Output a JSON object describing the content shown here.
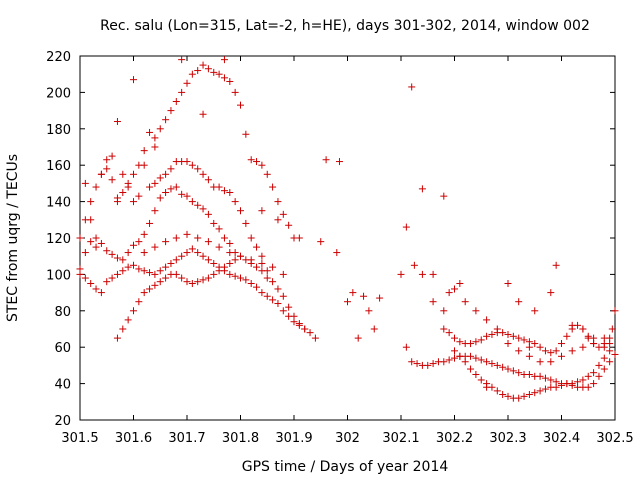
{
  "chart_data": {
    "type": "scatter",
    "title": "Rec. salu (Lon=315, Lat=-2, h=HE), days 301-302, 2014, window 002",
    "xlabel": "GPS time / Days of year 2014",
    "ylabel": "STEC from uqrg / TECUs",
    "xlim": [
      301.5,
      302.5
    ],
    "ylim": [
      20,
      220
    ],
    "grid": false,
    "legend": "none",
    "marker": "+",
    "marker_color": "#cc0000",
    "x_ticks": [
      "301.5",
      "301.6",
      "301.7",
      "301.8",
      "301.9",
      "302",
      "302.1",
      "302.2",
      "302.3",
      "302.4",
      "302.5"
    ],
    "x_tick_values": [
      301.5,
      301.6,
      301.7,
      301.8,
      301.9,
      302.0,
      302.1,
      302.2,
      302.3,
      302.4,
      302.5
    ],
    "y_ticks": [
      "20",
      "40",
      "60",
      "80",
      "100",
      "120",
      "140",
      "160",
      "180",
      "200",
      "220"
    ],
    "y_tick_values": [
      20,
      40,
      60,
      80,
      100,
      120,
      140,
      160,
      180,
      200,
      220
    ],
    "series": [
      {
        "name": "",
        "x": [
          301.5,
          301.51,
          301.52,
          301.53,
          301.54,
          301.55,
          301.56,
          301.57,
          301.58,
          301.59,
          301.6,
          301.61,
          301.62,
          301.63,
          301.64,
          301.65,
          301.66,
          301.67,
          301.68,
          301.69,
          301.7,
          301.71,
          301.72,
          301.73,
          301.74,
          301.75,
          301.76,
          301.77,
          301.78,
          301.79,
          301.8,
          301.81,
          301.82,
          301.83,
          301.84,
          301.85,
          301.51,
          301.52,
          301.53,
          301.54,
          301.55,
          301.56,
          301.57,
          301.58,
          301.59,
          301.6,
          301.61,
          301.62,
          301.63,
          301.64,
          301.65,
          301.66,
          301.67,
          301.68,
          301.69,
          301.7,
          301.71,
          301.72,
          301.73,
          301.74,
          301.75,
          301.76,
          301.77,
          301.78,
          301.79,
          301.8,
          301.81,
          301.82,
          301.83,
          301.84,
          301.85,
          301.86,
          301.87,
          301.88,
          301.89,
          301.9,
          301.5,
          301.51,
          301.52,
          301.53,
          301.54,
          301.55,
          301.56,
          301.57,
          301.58,
          301.59,
          301.6,
          301.61,
          301.62,
          301.63,
          301.64,
          301.65,
          301.66,
          301.67,
          301.68,
          301.69,
          301.7,
          301.71,
          301.72,
          301.73,
          301.74,
          301.75,
          301.76,
          301.77,
          301.78,
          301.79,
          301.8,
          301.81,
          301.82,
          301.83,
          301.84,
          301.85,
          301.86,
          301.87,
          301.88,
          301.89,
          301.9,
          301.91,
          301.92,
          301.5,
          301.51,
          301.52,
          301.53,
          301.54,
          301.55,
          301.56,
          301.57,
          301.58,
          301.59,
          301.6,
          301.61,
          301.62,
          301.63,
          301.64,
          301.65,
          301.66,
          301.67,
          301.68,
          301.69,
          301.7,
          301.71,
          301.72,
          301.73,
          301.74,
          301.75,
          301.76,
          301.77,
          301.78,
          301.79,
          301.8,
          301.81,
          301.82,
          301.83,
          301.84,
          301.85,
          301.86,
          301.87,
          301.88,
          301.89,
          301.9,
          301.91,
          301.92,
          301.93,
          301.94,
          301.57,
          301.58,
          301.59,
          301.6,
          301.61,
          301.62,
          301.63,
          301.64,
          301.65,
          301.66,
          301.67,
          301.68,
          301.69,
          301.7,
          301.71,
          301.72,
          301.73,
          301.74,
          301.75,
          301.76,
          301.77,
          301.78,
          301.79,
          301.62,
          301.64,
          301.66,
          301.68,
          301.7,
          301.72,
          301.74,
          301.76,
          301.78,
          301.8,
          301.82,
          301.84,
          301.86,
          301.88,
          301.57,
          301.6,
          301.64,
          301.69,
          301.73,
          301.77,
          301.96,
          301.985,
          301.84,
          301.87,
          301.91,
          301.95,
          301.98,
          302.01,
          302.03,
          302.06,
          302.0,
          302.04,
          302.05,
          302.02,
          302.11,
          302.12,
          302.14,
          302.16,
          302.18,
          302.2,
          302.22,
          302.24,
          302.26,
          302.28,
          302.3,
          302.32,
          302.34,
          302.36,
          302.38,
          302.4,
          302.42,
          302.44,
          302.46,
          302.48,
          302.495,
          302.18,
          302.19,
          302.2,
          302.21,
          302.22,
          302.23,
          302.24,
          302.25,
          302.26,
          302.27,
          302.28,
          302.29,
          302.3,
          302.31,
          302.32,
          302.33,
          302.34,
          302.35,
          302.36,
          302.37,
          302.38,
          302.39,
          302.4,
          302.41,
          302.42,
          302.43,
          302.44,
          302.45,
          302.46,
          302.47,
          302.48,
          302.49,
          302.2,
          302.21,
          302.22,
          302.23,
          302.24,
          302.25,
          302.26,
          302.27,
          302.28,
          302.29,
          302.3,
          302.31,
          302.32,
          302.33,
          302.34,
          302.35,
          302.36,
          302.37,
          302.38,
          302.39,
          302.4,
          302.41,
          302.42,
          302.43,
          302.44,
          302.45,
          302.46,
          302.47,
          302.48,
          302.49,
          302.12,
          302.13,
          302.14,
          302.15,
          302.16,
          302.17,
          302.18,
          302.19,
          302.2,
          302.21,
          302.22,
          302.23,
          302.24,
          302.25,
          302.26,
          302.27,
          302.28,
          302.29,
          302.3,
          302.31,
          302.32,
          302.33,
          302.34,
          302.35,
          302.36,
          302.37,
          302.38,
          302.39,
          302.4,
          302.41,
          302.42,
          302.43,
          302.44,
          302.45,
          302.46,
          302.47,
          302.48,
          302.49,
          302.5,
          302.1,
          302.125,
          302.14,
          302.16,
          302.18,
          302.19,
          302.21,
          302.3,
          302.32,
          302.35,
          302.38,
          302.39,
          302.42,
          302.44,
          302.45,
          302.46,
          302.48,
          302.49,
          302.5,
          302.26,
          302.34,
          302.11
        ],
        "y": [
          120,
          130,
          140,
          148,
          155,
          158,
          152,
          142,
          155,
          150,
          140,
          143,
          160,
          148,
          150,
          153,
          155,
          158,
          162,
          162,
          162,
          160,
          158,
          155,
          152,
          148,
          148,
          146,
          145,
          140,
          135,
          128,
          120,
          115,
          110,
          102,
          150,
          130,
          120,
          155,
          163,
          165,
          140,
          145,
          148,
          155,
          160,
          168,
          178,
          175,
          180,
          185,
          190,
          195,
          200,
          205,
          210,
          212,
          215,
          213,
          211,
          210,
          208,
          206,
          200,
          193,
          177,
          163,
          162,
          160,
          155,
          148,
          140,
          133,
          127,
          120,
          103,
          112,
          118,
          115,
          117,
          113,
          111,
          109,
          108,
          112,
          116,
          118,
          122,
          128,
          135,
          142,
          145,
          147,
          148,
          144,
          143,
          140,
          138,
          136,
          133,
          128,
          125,
          120,
          117,
          112,
          110,
          108,
          106,
          104,
          102,
          98,
          96,
          92,
          88,
          82,
          77,
          73,
          70,
          100,
          98,
          95,
          92,
          90,
          96,
          98,
          100,
          102,
          104,
          105,
          103,
          102,
          101,
          100,
          102,
          104,
          106,
          108,
          110,
          112,
          114,
          112,
          110,
          108,
          106,
          104,
          102,
          100,
          99,
          98,
          97,
          95,
          93,
          90,
          88,
          86,
          84,
          80,
          77,
          74,
          72,
          70,
          68,
          65,
          65,
          70,
          75,
          80,
          85,
          90,
          92,
          94,
          96,
          98,
          100,
          100,
          98,
          96,
          95,
          96,
          97,
          98,
          100,
          102,
          104,
          106,
          108,
          112,
          115,
          118,
          120,
          122,
          120,
          118,
          115,
          112,
          110,
          108,
          106,
          104,
          100,
          184,
          207,
          170,
          218,
          188,
          218,
          163,
          162,
          135,
          130,
          120,
          118,
          112,
          90,
          88,
          87,
          85,
          80,
          70,
          65,
          126,
          203,
          147,
          100,
          143,
          92,
          85,
          80,
          75,
          70,
          62,
          58,
          55,
          52,
          52,
          55,
          58,
          60,
          62,
          65,
          70,
          70,
          68,
          65,
          63,
          62,
          62,
          63,
          64,
          66,
          67,
          68,
          68,
          67,
          66,
          65,
          64,
          63,
          62,
          60,
          58,
          57,
          58,
          62,
          66,
          70,
          72,
          70,
          66,
          62,
          60,
          62,
          65,
          58,
          55,
          52,
          48,
          45,
          42,
          40,
          38,
          36,
          34,
          33,
          32,
          32,
          33,
          34,
          35,
          36,
          37,
          38,
          38,
          39,
          40,
          40,
          41,
          42,
          44,
          46,
          50,
          54,
          58,
          52,
          51,
          50,
          50,
          51,
          52,
          52,
          53,
          54,
          55,
          55,
          55,
          54,
          53,
          52,
          51,
          50,
          49,
          48,
          47,
          46,
          45,
          45,
          44,
          44,
          43,
          42,
          41,
          40,
          40,
          39,
          38,
          38,
          38,
          40,
          44,
          48,
          52,
          56,
          100,
          105,
          100,
          85,
          80,
          90,
          95,
          95,
          85,
          80,
          90,
          105,
          72,
          70,
          65,
          65,
          60,
          62,
          80,
          38,
          60,
          60
        ]
      }
    ]
  }
}
